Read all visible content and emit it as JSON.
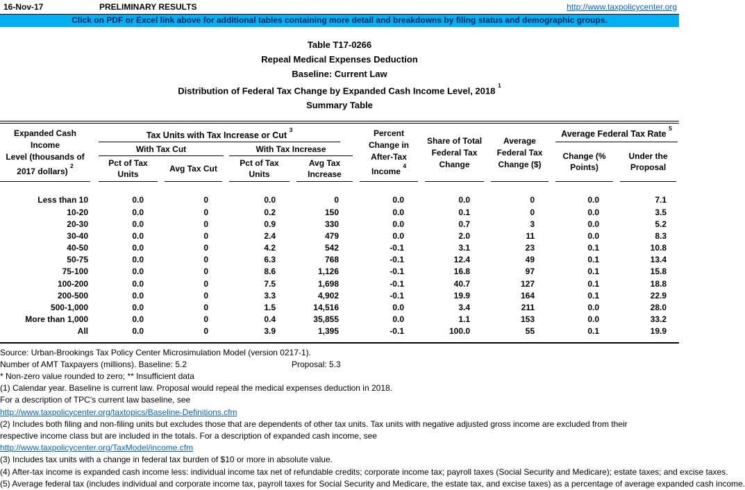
{
  "header": {
    "date": "16-Nov-17",
    "preliminary": "PRELIMINARY RESULTS",
    "url": "http://www.taxpolicycenter.org",
    "banner": "Click on PDF or Excel link above for additional tables containing more detail and breakdowns by filing status and demographic groups."
  },
  "title": {
    "line1": "Table T17-0266",
    "line2": "Repeal Medical Expenses Deduction",
    "line3": "Baseline: Current Law",
    "line4": "Distribution of Federal Tax Change by Expanded Cash Income Level, 2018",
    "line4_sup": "1",
    "line5": "Summary Table"
  },
  "table": {
    "col0": {
      "l1": "Expanded Cash Income",
      "l2": "Level (thousands of",
      "l3": "2017 dollars)",
      "sup": "2"
    },
    "group1": {
      "label": "Tax Units with Tax Increase or Cut",
      "sup": "3"
    },
    "with_cut": "With Tax Cut",
    "with_increase": "With Tax Increase",
    "sub1": {
      "l1": "Pct of Tax",
      "l2": "Units"
    },
    "sub2": "Avg Tax Cut",
    "sub3": {
      "l1": "Pct of Tax",
      "l2": "Units"
    },
    "sub4": {
      "l1": "Avg Tax",
      "l2": "Increase"
    },
    "col5": {
      "l1": "Percent",
      "l2": "Change in",
      "l3": "After-Tax",
      "l4": "Income",
      "sup": "4"
    },
    "col6": {
      "l1": "Share of Total",
      "l2": "Federal Tax",
      "l3": "Change"
    },
    "col7": {
      "l1": "Average",
      "l2": "Federal Tax",
      "l3": "Change ($)"
    },
    "group2": {
      "label": "Average Federal Tax Rate",
      "sup": "5"
    },
    "sub8": {
      "l1": "Change (%",
      "l2": "Points)"
    },
    "sub9": {
      "l1": "Under the",
      "l2": "Proposal"
    },
    "rows": [
      {
        "cells": [
          "Less than 10",
          "0.0",
          "0",
          "0.0",
          "0",
          "0.0",
          "0.0",
          "0",
          "0.0",
          "7.1"
        ]
      },
      {
        "cells": [
          "10-20",
          "0.0",
          "0",
          "0.2",
          "150",
          "0.0",
          "0.1",
          "0",
          "0.0",
          "3.5"
        ]
      },
      {
        "cells": [
          "20-30",
          "0.0",
          "0",
          "0.9",
          "330",
          "0.0",
          "0.7",
          "3",
          "0.0",
          "5.2"
        ]
      },
      {
        "cells": [
          "30-40",
          "0.0",
          "0",
          "2.4",
          "479",
          "0.0",
          "2.0",
          "11",
          "0.0",
          "8.3"
        ]
      },
      {
        "cells": [
          "40-50",
          "0.0",
          "0",
          "4.2",
          "542",
          "-0.1",
          "3.1",
          "23",
          "0.1",
          "10.8"
        ]
      },
      {
        "cells": [
          "50-75",
          "0.0",
          "0",
          "6.3",
          "768",
          "-0.1",
          "12.4",
          "49",
          "0.1",
          "13.4"
        ]
      },
      {
        "cells": [
          "75-100",
          "0.0",
          "0",
          "8.6",
          "1,126",
          "-0.1",
          "16.8",
          "97",
          "0.1",
          "15.8"
        ]
      },
      {
        "cells": [
          "100-200",
          "0.0",
          "0",
          "7.5",
          "1,698",
          "-0.1",
          "40.7",
          "127",
          "0.1",
          "18.8"
        ]
      },
      {
        "cells": [
          "200-500",
          "0.0",
          "0",
          "3.3",
          "4,902",
          "-0.1",
          "19.9",
          "164",
          "0.1",
          "22.9"
        ]
      },
      {
        "cells": [
          "500-1,000",
          "0.0",
          "0",
          "1.5",
          "14,516",
          "0.0",
          "3.4",
          "211",
          "0.0",
          "28.0"
        ]
      },
      {
        "cells": [
          "More than 1,000",
          "0.0",
          "0",
          "0.4",
          "35,855",
          "0.0",
          "1.1",
          "153",
          "0.0",
          "33.2"
        ]
      },
      {
        "cells": [
          "All",
          "0.0",
          "0",
          "3.9",
          "1,395",
          "-0.1",
          "100.0",
          "55",
          "0.1",
          "19.9"
        ]
      }
    ]
  },
  "notes": {
    "source": "Source: Urban-Brookings Tax Policy Center Microsimulation Model (version 0217-1).",
    "amt_left": "Number of AMT Taxpayers (millions).  Baseline: 5.2",
    "amt_right": "Proposal: 5.3",
    "stars": "* Non-zero value rounded to zero; ** Insufficient data",
    "n1": "(1) Calendar year. Baseline is current law. Proposal would repeal the medical expenses deduction in 2018.",
    "baseline_see": "For a description of TPC's current law baseline, see",
    "link1": "http://www.taxpolicycenter.org/taxtopics/Baseline-Definitions.cfm",
    "n2a": "(2) Includes both filing and non-filing units but excludes those that are dependents of other tax units. Tax units with negative adjusted gross income are excluded from their",
    "n2b": "respective income class but are included in the totals. For a description of expanded cash income, see",
    "link2": "http://www.taxpolicycenter.org/TaxModel/income.cfm",
    "n3": "(3) Includes tax units with a change in federal tax burden of $10 or more in absolute value.",
    "n4": "(4) After-tax income is expanded cash income less: individual income tax net of refundable credits; corporate income tax; payroll taxes (Social Security and Medicare); estate taxes; and excise taxes.",
    "n5": "(5) Average federal tax (includes individual and corporate income tax, payroll taxes for Social Security and Medicare, the estate tax, and excise taxes) as a percentage of average expanded cash income."
  }
}
